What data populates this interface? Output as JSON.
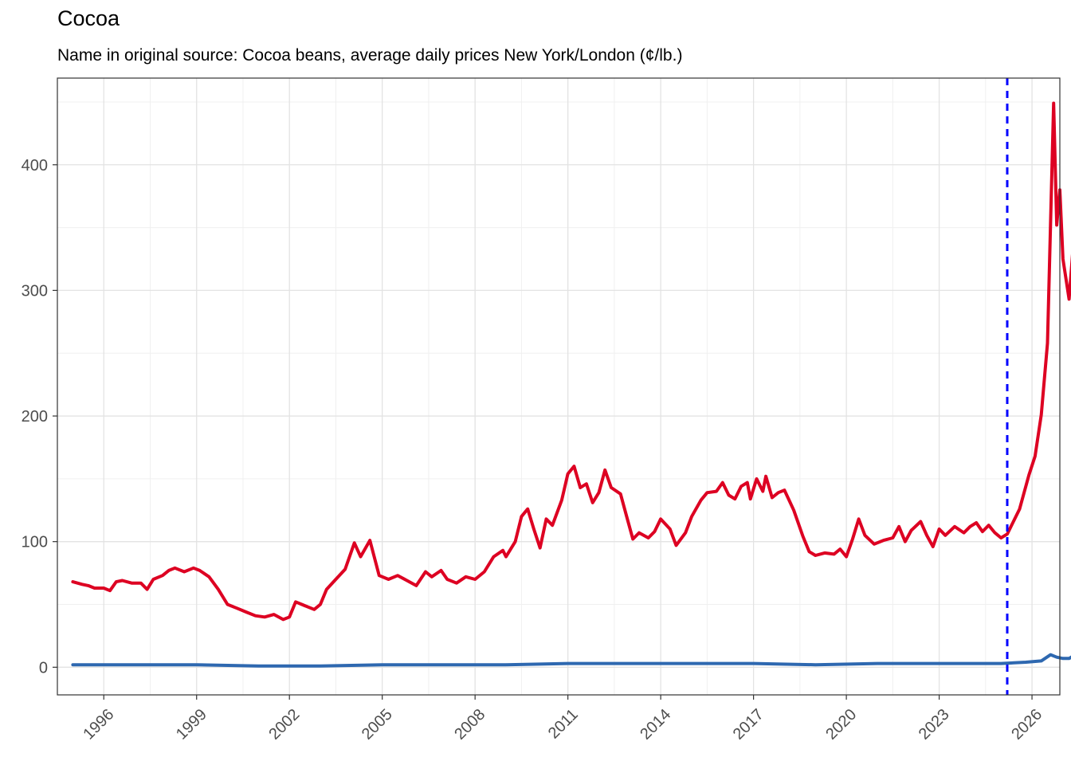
{
  "chart_data": {
    "type": "line",
    "title": "Cocoa",
    "subtitle": "Name in original source: Cocoa beans, average daily prices New York/London (¢/lb.)",
    "xlabel": "",
    "ylabel": "",
    "xlim": [
      1994.5,
      2026.9
    ],
    "ylim": [
      -22,
      469
    ],
    "x_ticks": [
      1996,
      1999,
      2002,
      2005,
      2008,
      2011,
      2014,
      2017,
      2020,
      2023,
      2026
    ],
    "y_ticks": [
      0,
      100,
      200,
      300,
      400
    ],
    "grid": true,
    "vline": {
      "x": 2025.2,
      "color": "#0000ff",
      "style": "dashed"
    },
    "series": [
      {
        "color": "#dd0022",
        "points": [
          [
            1995.0,
            68
          ],
          [
            1995.3,
            66
          ],
          [
            1995.5,
            65
          ],
          [
            1995.7,
            63
          ],
          [
            1996.0,
            63
          ],
          [
            1996.2,
            61
          ],
          [
            1996.4,
            68
          ],
          [
            1996.6,
            69
          ],
          [
            1996.9,
            67
          ],
          [
            1997.2,
            67
          ],
          [
            1997.4,
            62
          ],
          [
            1997.6,
            70
          ],
          [
            1997.9,
            73
          ],
          [
            1998.1,
            77
          ],
          [
            1998.3,
            79
          ],
          [
            1998.6,
            76
          ],
          [
            1998.9,
            79
          ],
          [
            1999.1,
            77
          ],
          [
            1999.4,
            72
          ],
          [
            1999.7,
            62
          ],
          [
            2000.0,
            50
          ],
          [
            2000.3,
            47
          ],
          [
            2000.6,
            44
          ],
          [
            2000.9,
            41
          ],
          [
            2001.2,
            40
          ],
          [
            2001.5,
            42
          ],
          [
            2001.8,
            38
          ],
          [
            2002.0,
            40
          ],
          [
            2002.2,
            52
          ],
          [
            2002.5,
            49
          ],
          [
            2002.8,
            46
          ],
          [
            2003.0,
            50
          ],
          [
            2003.2,
            62
          ],
          [
            2003.5,
            70
          ],
          [
            2003.8,
            78
          ],
          [
            2004.1,
            99
          ],
          [
            2004.3,
            88
          ],
          [
            2004.6,
            101
          ],
          [
            2004.9,
            73
          ],
          [
            2005.2,
            70
          ],
          [
            2005.5,
            73
          ],
          [
            2005.8,
            69
          ],
          [
            2006.1,
            65
          ],
          [
            2006.4,
            76
          ],
          [
            2006.6,
            72
          ],
          [
            2006.9,
            77
          ],
          [
            2007.1,
            70
          ],
          [
            2007.4,
            67
          ],
          [
            2007.7,
            72
          ],
          [
            2008.0,
            70
          ],
          [
            2008.3,
            76
          ],
          [
            2008.6,
            88
          ],
          [
            2008.9,
            93
          ],
          [
            2009.0,
            88
          ],
          [
            2009.3,
            100
          ],
          [
            2009.5,
            120
          ],
          [
            2009.7,
            126
          ],
          [
            2009.9,
            110
          ],
          [
            2010.1,
            95
          ],
          [
            2010.3,
            118
          ],
          [
            2010.5,
            113
          ],
          [
            2010.8,
            133
          ],
          [
            2011.0,
            154
          ],
          [
            2011.2,
            160
          ],
          [
            2011.4,
            143
          ],
          [
            2011.6,
            146
          ],
          [
            2011.8,
            131
          ],
          [
            2012.0,
            139
          ],
          [
            2012.2,
            157
          ],
          [
            2012.4,
            143
          ],
          [
            2012.7,
            138
          ],
          [
            2012.9,
            120
          ],
          [
            2013.1,
            102
          ],
          [
            2013.3,
            107
          ],
          [
            2013.6,
            103
          ],
          [
            2013.8,
            108
          ],
          [
            2014.0,
            118
          ],
          [
            2014.3,
            110
          ],
          [
            2014.5,
            97
          ],
          [
            2014.8,
            107
          ],
          [
            2015.0,
            120
          ],
          [
            2015.3,
            133
          ],
          [
            2015.5,
            139
          ],
          [
            2015.8,
            140
          ],
          [
            2016.0,
            147
          ],
          [
            2016.2,
            137
          ],
          [
            2016.4,
            134
          ],
          [
            2016.6,
            144
          ],
          [
            2016.8,
            147
          ],
          [
            2016.9,
            134
          ],
          [
            2017.1,
            150
          ],
          [
            2017.3,
            140
          ],
          [
            2017.4,
            152
          ],
          [
            2017.6,
            135
          ],
          [
            2017.8,
            139
          ],
          [
            2018.0,
            141
          ],
          [
            2018.3,
            125
          ],
          [
            2018.6,
            104
          ],
          [
            2018.8,
            92
          ],
          [
            2019.0,
            89
          ],
          [
            2019.3,
            91
          ],
          [
            2019.6,
            90
          ],
          [
            2019.8,
            94
          ],
          [
            2020.0,
            88
          ],
          [
            2020.2,
            102
          ],
          [
            2020.4,
            118
          ],
          [
            2020.6,
            105
          ],
          [
            2020.9,
            98
          ],
          [
            2021.2,
            101
          ],
          [
            2021.5,
            103
          ],
          [
            2021.7,
            112
          ],
          [
            2021.9,
            100
          ],
          [
            2022.1,
            109
          ],
          [
            2022.4,
            116
          ],
          [
            2022.6,
            105
          ],
          [
            2022.8,
            96
          ],
          [
            2023.0,
            110
          ],
          [
            2023.2,
            105
          ],
          [
            2023.5,
            112
          ],
          [
            2023.8,
            107
          ],
          [
            2024.0,
            112
          ],
          [
            2024.2,
            115
          ],
          [
            2024.4,
            108
          ],
          [
            2024.6,
            113
          ],
          [
            2024.8,
            107
          ],
          [
            2025.0,
            103
          ],
          [
            2025.2,
            106
          ],
          [
            2025.6,
            126
          ],
          [
            2025.9,
            153
          ],
          [
            2026.1,
            168
          ],
          [
            2026.3,
            201
          ],
          [
            2026.5,
            258
          ],
          [
            2026.7,
            449
          ],
          [
            2026.8,
            352
          ],
          [
            2026.9,
            380
          ],
          [
            2027.0,
            325
          ],
          [
            2027.2,
            293
          ],
          [
            2027.4,
            357
          ]
        ]
      },
      {
        "color": "#2e68b0",
        "points": [
          [
            1995.0,
            2
          ],
          [
            1997.0,
            2
          ],
          [
            1999.0,
            2
          ],
          [
            2001.0,
            1
          ],
          [
            2003.0,
            1
          ],
          [
            2005.0,
            2
          ],
          [
            2007.0,
            2
          ],
          [
            2009.0,
            2
          ],
          [
            2011.0,
            3
          ],
          [
            2013.0,
            3
          ],
          [
            2015.0,
            3
          ],
          [
            2017.0,
            3
          ],
          [
            2019.0,
            2
          ],
          [
            2021.0,
            3
          ],
          [
            2023.0,
            3
          ],
          [
            2025.0,
            3
          ],
          [
            2025.8,
            4
          ],
          [
            2026.3,
            5
          ],
          [
            2026.6,
            10
          ],
          [
            2026.8,
            8
          ],
          [
            2027.0,
            7
          ],
          [
            2027.2,
            7
          ],
          [
            2027.4,
            10
          ]
        ]
      }
    ]
  }
}
